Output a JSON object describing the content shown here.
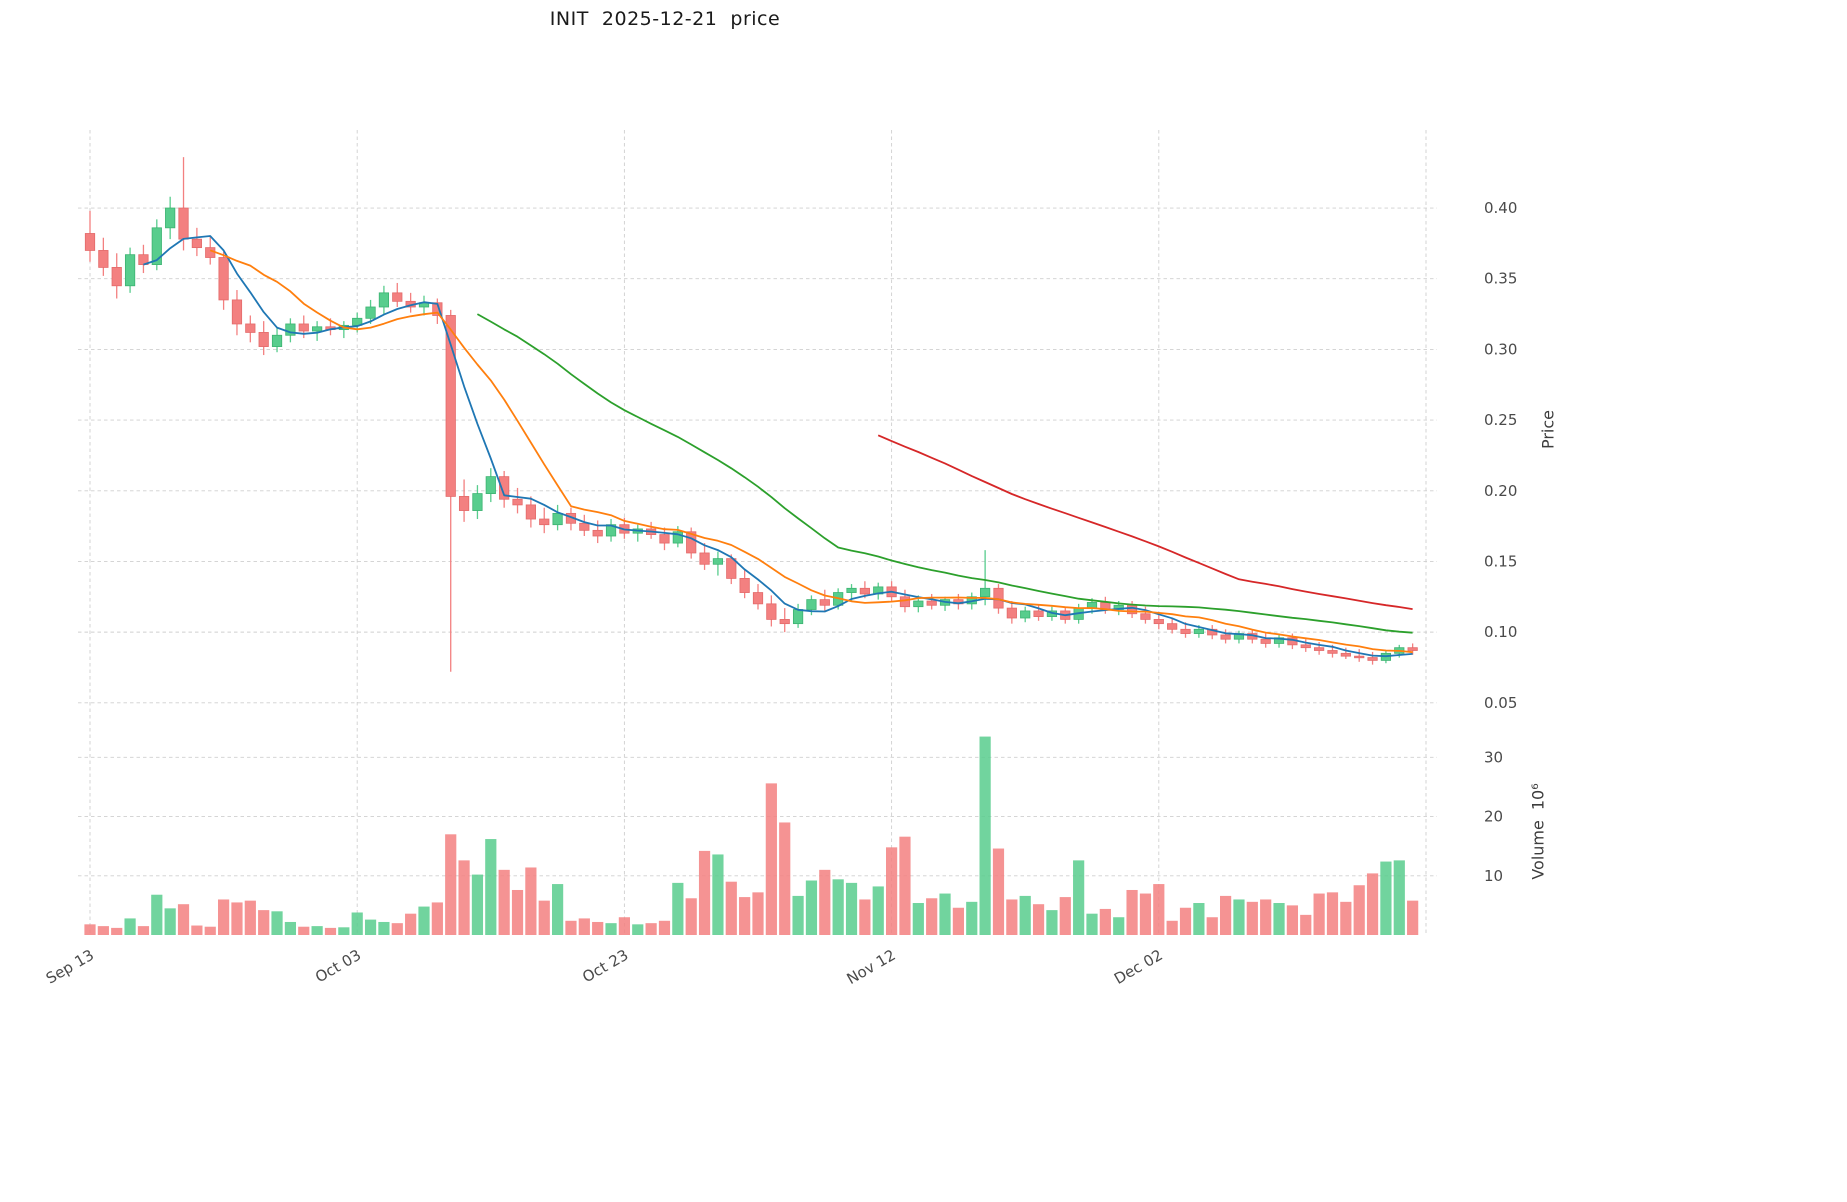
{
  "chart_data": {
    "type": "candlestick_with_volume",
    "title": "INIT  2025-12-21  price",
    "price_axis": {
      "label": "Price",
      "ticks": [
        0.05,
        0.1,
        0.15,
        0.2,
        0.25,
        0.3,
        0.35,
        0.4
      ],
      "ylim": [
        0.0435,
        0.4552
      ],
      "side": "right"
    },
    "volume_axis": {
      "label": "Volume",
      "scale_text": "10⁶",
      "ticks": [
        10,
        20,
        30
      ],
      "ylim": [
        0,
        36.3
      ],
      "side": "right"
    },
    "x_axis": {
      "tick_labels": [
        "Sep 13",
        "Oct 03",
        "Oct 23",
        "Nov 12",
        "Dec 02"
      ],
      "tick_day_indices": [
        0,
        20,
        40,
        60,
        80
      ],
      "label_rotation_deg": 30
    },
    "grid": {
      "on": true,
      "style": "dashed"
    },
    "colors": {
      "up": "#58cd8d",
      "down": "#f38080",
      "up_edge": "#3cb371",
      "down_edge": "#e36a6a",
      "grid": "#cfcfcf",
      "tick_text": "#4a4a4a",
      "title_text": "#1a1a1a",
      "background": "#ffffff"
    },
    "overlays": [
      {
        "name": "MA5",
        "window": 5,
        "color": "#1f77b4"
      },
      {
        "name": "MA10",
        "window": 10,
        "color": "#ff7f0e"
      },
      {
        "name": "MA30",
        "window": 30,
        "color": "#2ca02c"
      },
      {
        "name": "MA60",
        "window": 60,
        "color": "#d62728"
      }
    ],
    "columns": [
      "date",
      "open",
      "high",
      "low",
      "close",
      "volume_millions"
    ],
    "ohlcv": [
      [
        "2025-09-13",
        0.382,
        0.398,
        0.362,
        0.37,
        1.8
      ],
      [
        "2025-09-14",
        0.37,
        0.379,
        0.352,
        0.358,
        1.5
      ],
      [
        "2025-09-15",
        0.358,
        0.368,
        0.336,
        0.345,
        1.2
      ],
      [
        "2025-09-16",
        0.345,
        0.372,
        0.34,
        0.367,
        2.8
      ],
      [
        "2025-09-17",
        0.367,
        0.374,
        0.354,
        0.36,
        1.5
      ],
      [
        "2025-09-18",
        0.36,
        0.392,
        0.356,
        0.386,
        6.8
      ],
      [
        "2025-09-19",
        0.386,
        0.408,
        0.378,
        0.4,
        4.5
      ],
      [
        "2025-09-20",
        0.4,
        0.436,
        0.37,
        0.378,
        5.2
      ],
      [
        "2025-09-21",
        0.378,
        0.386,
        0.366,
        0.372,
        1.6
      ],
      [
        "2025-09-22",
        0.372,
        0.38,
        0.36,
        0.365,
        1.4
      ],
      [
        "2025-09-23",
        0.365,
        0.369,
        0.328,
        0.335,
        6.0
      ],
      [
        "2025-09-24",
        0.335,
        0.342,
        0.31,
        0.318,
        5.5
      ],
      [
        "2025-09-25",
        0.318,
        0.324,
        0.305,
        0.312,
        5.8
      ],
      [
        "2025-09-26",
        0.312,
        0.32,
        0.296,
        0.302,
        4.2
      ],
      [
        "2025-09-27",
        0.302,
        0.315,
        0.298,
        0.31,
        4.0
      ],
      [
        "2025-09-28",
        0.31,
        0.322,
        0.305,
        0.318,
        2.2
      ],
      [
        "2025-09-29",
        0.318,
        0.324,
        0.308,
        0.313,
        1.4
      ],
      [
        "2025-09-30",
        0.313,
        0.32,
        0.306,
        0.316,
        1.5
      ],
      [
        "2025-10-01",
        0.316,
        0.322,
        0.31,
        0.314,
        1.2
      ],
      [
        "2025-10-02",
        0.314,
        0.32,
        0.308,
        0.317,
        1.3
      ],
      [
        "2025-10-03",
        0.317,
        0.326,
        0.312,
        0.322,
        3.8
      ],
      [
        "2025-10-04",
        0.322,
        0.335,
        0.318,
        0.33,
        2.6
      ],
      [
        "2025-10-05",
        0.33,
        0.345,
        0.325,
        0.34,
        2.2
      ],
      [
        "2025-10-06",
        0.34,
        0.347,
        0.33,
        0.334,
        2.0
      ],
      [
        "2025-10-07",
        0.334,
        0.34,
        0.326,
        0.33,
        3.6
      ],
      [
        "2025-10-08",
        0.33,
        0.338,
        0.324,
        0.333,
        4.8
      ],
      [
        "2025-10-09",
        0.333,
        0.336,
        0.318,
        0.324,
        5.5
      ],
      [
        "2025-10-10",
        0.324,
        0.328,
        0.072,
        0.196,
        17.0
      ],
      [
        "2025-10-11",
        0.196,
        0.208,
        0.178,
        0.186,
        12.6
      ],
      [
        "2025-10-12",
        0.186,
        0.204,
        0.18,
        0.198,
        10.2
      ],
      [
        "2025-10-13",
        0.198,
        0.216,
        0.192,
        0.21,
        16.2
      ],
      [
        "2025-10-14",
        0.21,
        0.214,
        0.188,
        0.194,
        11.0
      ],
      [
        "2025-10-15",
        0.194,
        0.202,
        0.184,
        0.19,
        7.6
      ],
      [
        "2025-10-16",
        0.19,
        0.196,
        0.174,
        0.18,
        11.4
      ],
      [
        "2025-10-17",
        0.18,
        0.188,
        0.17,
        0.176,
        5.8
      ],
      [
        "2025-10-18",
        0.176,
        0.19,
        0.172,
        0.184,
        8.6
      ],
      [
        "2025-10-19",
        0.184,
        0.188,
        0.172,
        0.177,
        2.4
      ],
      [
        "2025-10-20",
        0.177,
        0.183,
        0.168,
        0.172,
        2.8
      ],
      [
        "2025-10-21",
        0.172,
        0.179,
        0.163,
        0.168,
        2.2
      ],
      [
        "2025-10-22",
        0.168,
        0.18,
        0.164,
        0.176,
        2.0
      ],
      [
        "2025-10-23",
        0.176,
        0.181,
        0.166,
        0.17,
        3.0
      ],
      [
        "2025-10-24",
        0.17,
        0.176,
        0.164,
        0.173,
        1.8
      ],
      [
        "2025-10-25",
        0.173,
        0.178,
        0.166,
        0.169,
        2.0
      ],
      [
        "2025-10-26",
        0.169,
        0.174,
        0.158,
        0.163,
        2.4
      ],
      [
        "2025-10-27",
        0.163,
        0.175,
        0.16,
        0.171,
        8.8
      ],
      [
        "2025-10-28",
        0.171,
        0.174,
        0.152,
        0.156,
        6.2
      ],
      [
        "2025-10-29",
        0.156,
        0.163,
        0.144,
        0.148,
        14.2
      ],
      [
        "2025-10-30",
        0.148,
        0.157,
        0.14,
        0.152,
        13.6
      ],
      [
        "2025-10-31",
        0.152,
        0.155,
        0.134,
        0.138,
        9.0
      ],
      [
        "2025-11-01",
        0.138,
        0.144,
        0.124,
        0.128,
        6.4
      ],
      [
        "2025-11-02",
        0.128,
        0.134,
        0.116,
        0.12,
        7.2
      ],
      [
        "2025-11-03",
        0.12,
        0.126,
        0.104,
        0.109,
        25.6
      ],
      [
        "2025-11-04",
        0.109,
        0.117,
        0.1,
        0.106,
        19.0
      ],
      [
        "2025-11-05",
        0.106,
        0.12,
        0.103,
        0.116,
        6.6
      ],
      [
        "2025-11-06",
        0.116,
        0.126,
        0.112,
        0.123,
        9.2
      ],
      [
        "2025-11-07",
        0.123,
        0.13,
        0.115,
        0.119,
        11.0
      ],
      [
        "2025-11-08",
        0.119,
        0.131,
        0.116,
        0.128,
        9.4
      ],
      [
        "2025-11-09",
        0.128,
        0.134,
        0.122,
        0.131,
        8.8
      ],
      [
        "2025-11-10",
        0.131,
        0.136,
        0.124,
        0.127,
        6.0
      ],
      [
        "2025-11-11",
        0.127,
        0.135,
        0.123,
        0.132,
        8.2
      ],
      [
        "2025-11-12",
        0.132,
        0.136,
        0.121,
        0.125,
        14.8
      ],
      [
        "2025-11-13",
        0.125,
        0.13,
        0.114,
        0.118,
        16.6
      ],
      [
        "2025-11-14",
        0.118,
        0.126,
        0.114,
        0.122,
        5.4
      ],
      [
        "2025-11-15",
        0.122,
        0.127,
        0.116,
        0.119,
        6.2
      ],
      [
        "2025-11-16",
        0.119,
        0.125,
        0.115,
        0.123,
        7.0
      ],
      [
        "2025-11-17",
        0.123,
        0.127,
        0.116,
        0.12,
        4.6
      ],
      [
        "2025-11-18",
        0.12,
        0.128,
        0.116,
        0.125,
        5.6
      ],
      [
        "2025-11-19",
        0.125,
        0.158,
        0.119,
        0.131,
        33.5
      ],
      [
        "2025-11-20",
        0.131,
        0.134,
        0.113,
        0.117,
        14.6
      ],
      [
        "2025-11-21",
        0.117,
        0.122,
        0.106,
        0.11,
        6.0
      ],
      [
        "2025-11-22",
        0.11,
        0.118,
        0.107,
        0.115,
        6.6
      ],
      [
        "2025-11-23",
        0.115,
        0.119,
        0.108,
        0.111,
        5.2
      ],
      [
        "2025-11-24",
        0.111,
        0.118,
        0.108,
        0.115,
        4.2
      ],
      [
        "2025-11-25",
        0.115,
        0.118,
        0.106,
        0.109,
        6.4
      ],
      [
        "2025-11-26",
        0.109,
        0.12,
        0.106,
        0.117,
        12.6
      ],
      [
        "2025-11-27",
        0.117,
        0.124,
        0.113,
        0.121,
        3.6
      ],
      [
        "2025-11-28",
        0.121,
        0.125,
        0.113,
        0.116,
        4.4
      ],
      [
        "2025-11-29",
        0.116,
        0.122,
        0.112,
        0.119,
        3.0
      ],
      [
        "2025-11-30",
        0.119,
        0.122,
        0.11,
        0.113,
        7.6
      ],
      [
        "2025-12-01",
        0.113,
        0.118,
        0.106,
        0.109,
        7.0
      ],
      [
        "2025-12-02",
        0.109,
        0.114,
        0.102,
        0.106,
        8.6
      ],
      [
        "2025-12-03",
        0.106,
        0.11,
        0.099,
        0.102,
        2.4
      ],
      [
        "2025-12-04",
        0.102,
        0.107,
        0.096,
        0.099,
        4.6
      ],
      [
        "2025-12-05",
        0.099,
        0.105,
        0.096,
        0.102,
        5.4
      ],
      [
        "2025-12-06",
        0.102,
        0.105,
        0.095,
        0.098,
        3.0
      ],
      [
        "2025-12-07",
        0.098,
        0.102,
        0.092,
        0.095,
        6.6
      ],
      [
        "2025-12-08",
        0.095,
        0.101,
        0.092,
        0.099,
        6.0
      ],
      [
        "2025-12-09",
        0.099,
        0.102,
        0.092,
        0.095,
        5.6
      ],
      [
        "2025-12-10",
        0.095,
        0.099,
        0.089,
        0.092,
        6.0
      ],
      [
        "2025-12-11",
        0.092,
        0.098,
        0.089,
        0.096,
        5.4
      ],
      [
        "2025-12-12",
        0.096,
        0.099,
        0.088,
        0.091,
        5.0
      ],
      [
        "2025-12-13",
        0.091,
        0.095,
        0.086,
        0.089,
        3.4
      ],
      [
        "2025-12-14",
        0.089,
        0.093,
        0.084,
        0.087,
        7.0
      ],
      [
        "2025-12-15",
        0.087,
        0.091,
        0.082,
        0.085,
        7.2
      ],
      [
        "2025-12-16",
        0.085,
        0.089,
        0.081,
        0.083,
        5.6
      ],
      [
        "2025-12-17",
        0.083,
        0.088,
        0.079,
        0.082,
        8.4
      ],
      [
        "2025-12-18",
        0.082,
        0.086,
        0.077,
        0.08,
        10.4
      ],
      [
        "2025-12-19",
        0.08,
        0.087,
        0.078,
        0.085,
        12.4
      ],
      [
        "2025-12-20",
        0.085,
        0.091,
        0.082,
        0.089,
        12.6
      ],
      [
        "2025-12-21",
        0.089,
        0.092,
        0.084,
        0.087,
        5.8
      ]
    ]
  }
}
